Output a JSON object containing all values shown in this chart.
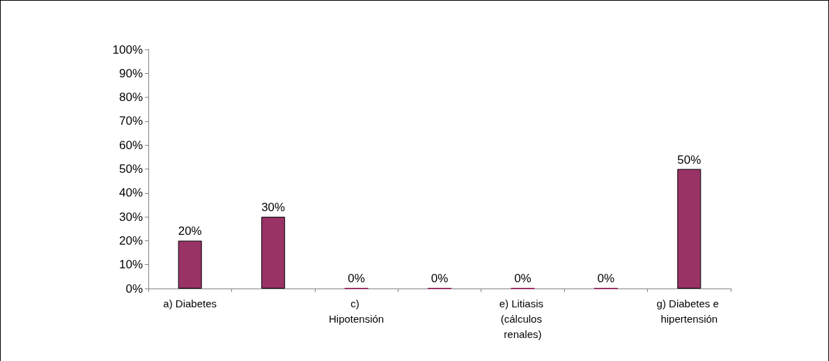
{
  "chart_data": {
    "type": "bar",
    "categories": [
      "a) Diabetes",
      null,
      "c) Hipotensión",
      null,
      "e) Litiasis (cálculos renales)",
      null,
      "g) Diabetes e hipertensión"
    ],
    "values": [
      20,
      30,
      0,
      0,
      0,
      0,
      50
    ],
    "value_labels": [
      "20%",
      "30%",
      "0%",
      "0%",
      "0%",
      "0%",
      "50%"
    ],
    "color": "#993366",
    "ylim": [
      0,
      100
    ],
    "yticks": [
      {
        "value": 0,
        "label": "0%"
      },
      {
        "value": 10,
        "label": "10%"
      },
      {
        "value": 20,
        "label": "20%"
      },
      {
        "value": 30,
        "label": "30%"
      },
      {
        "value": 40,
        "label": "40%"
      },
      {
        "value": 50,
        "label": "50%"
      },
      {
        "value": 60,
        "label": "60%"
      },
      {
        "value": 70,
        "label": "70%"
      },
      {
        "value": 80,
        "label": "80%"
      },
      {
        "value": 90,
        "label": "90%"
      },
      {
        "value": 100,
        "label": "100%"
      }
    ],
    "grid": false
  }
}
